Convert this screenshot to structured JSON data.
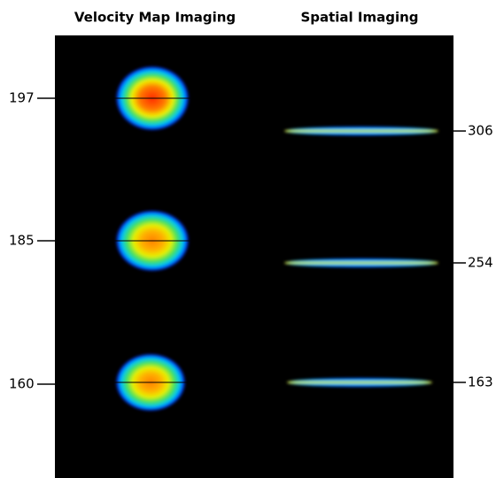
{
  "headers": [
    "Velocity Map Imaging",
    "Spatial Imaging"
  ],
  "left_labels": [
    197,
    185,
    160
  ],
  "right_labels": [
    306,
    254,
    163
  ]
}
